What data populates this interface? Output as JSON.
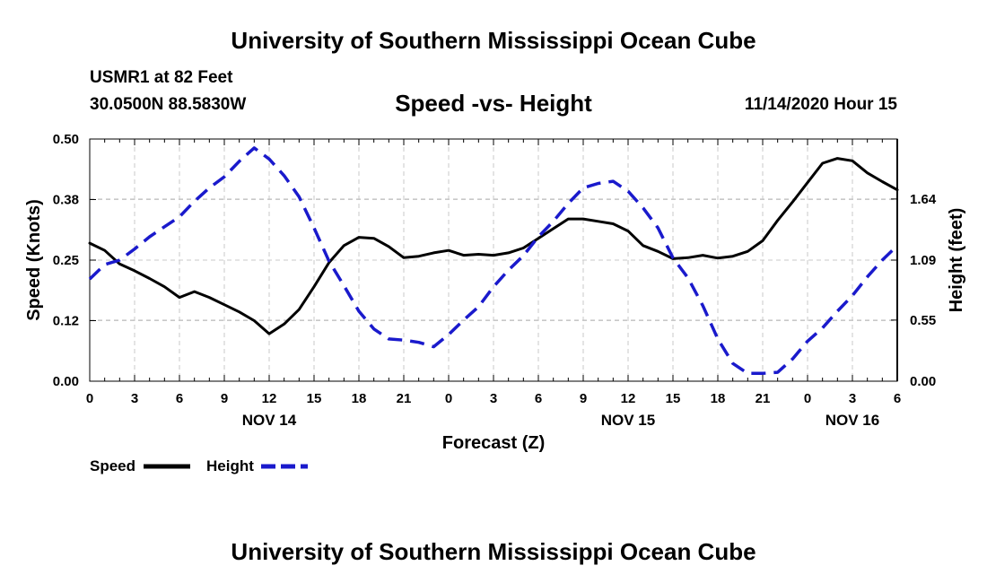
{
  "header": {
    "title": "University of Southern Mississippi Ocean Cube",
    "station": "USMR1 at 82 Feet",
    "coords": "30.0500N 88.5830W",
    "subtitle": "Speed -vs- Height",
    "datetime": "11/14/2020 Hour 15"
  },
  "footer": {
    "title": "University of Southern Mississippi Ocean Cube"
  },
  "legend": {
    "speed_label": "Speed",
    "height_label": "Height"
  },
  "colors": {
    "speed": "#000000",
    "height": "#1a1acc",
    "grid": "#c8c8c8"
  },
  "chart_data": {
    "type": "line",
    "title": "Speed -vs- Height",
    "xlabel": "Forecast (Z)",
    "ylabel": "Speed (Knots)",
    "y2label": "Height (feet)",
    "x_unit": "hours since NOV 14 00Z",
    "xlim": [
      0,
      54
    ],
    "ylim": [
      0,
      0.5
    ],
    "y2lim": [
      0,
      2.18
    ],
    "x_ticks": [
      0,
      3,
      6,
      9,
      12,
      15,
      18,
      21,
      24,
      27,
      30,
      33,
      36,
      39,
      42,
      45,
      48,
      51,
      54
    ],
    "x_tick_labels": [
      "0",
      "3",
      "6",
      "9",
      "12",
      "15",
      "18",
      "21",
      "0",
      "3",
      "6",
      "9",
      "12",
      "15",
      "18",
      "21",
      "0",
      "3",
      "6"
    ],
    "date_labels": [
      {
        "x": 12,
        "label": "NOV 14"
      },
      {
        "x": 36,
        "label": "NOV 15"
      },
      {
        "x": 51,
        "label": "NOV 16"
      }
    ],
    "y_ticks": [
      0.0,
      0.125,
      0.25,
      0.375,
      0.5
    ],
    "y_tick_labels": [
      "0.00",
      "0.12",
      "0.25",
      "0.38",
      "0.50"
    ],
    "y2_ticks": [
      0.0,
      0.55,
      1.09,
      1.64
    ],
    "y2_tick_labels": [
      "0.00",
      "0.55",
      "1.09",
      "1.64"
    ],
    "grid": true,
    "legend_position": "bottom-left",
    "series": [
      {
        "name": "Speed",
        "axis": "left",
        "style": "solid",
        "x": [
          0,
          1,
          2,
          3,
          4,
          5,
          6,
          7,
          8,
          9,
          10,
          11,
          12,
          13,
          14,
          15,
          16,
          17,
          18,
          19,
          20,
          21,
          22,
          23,
          24,
          25,
          26,
          27,
          28,
          29,
          30,
          31,
          32,
          33,
          34,
          35,
          36,
          37,
          38,
          39,
          40,
          41,
          42,
          43,
          44,
          45,
          46,
          47,
          48,
          49,
          50,
          51,
          52,
          53,
          54
        ],
        "values": [
          0.285,
          0.27,
          0.242,
          0.228,
          0.212,
          0.195,
          0.173,
          0.185,
          0.173,
          0.158,
          0.143,
          0.125,
          0.098,
          0.118,
          0.148,
          0.195,
          0.245,
          0.28,
          0.297,
          0.295,
          0.278,
          0.255,
          0.258,
          0.265,
          0.27,
          0.26,
          0.262,
          0.26,
          0.265,
          0.275,
          0.295,
          0.315,
          0.335,
          0.335,
          0.33,
          0.325,
          0.31,
          0.28,
          0.268,
          0.253,
          0.255,
          0.26,
          0.254,
          0.258,
          0.268,
          0.29,
          0.332,
          0.37,
          0.41,
          0.45,
          0.46,
          0.455,
          0.43,
          0.412,
          0.395
        ]
      },
      {
        "name": "Height",
        "axis": "right",
        "style": "dashed",
        "x": [
          0,
          1,
          2,
          3,
          4,
          5,
          6,
          7,
          8,
          9,
          10,
          11,
          12,
          13,
          14,
          15,
          16,
          17,
          18,
          19,
          20,
          21,
          22,
          23,
          24,
          25,
          26,
          27,
          28,
          29,
          30,
          31,
          32,
          33,
          34,
          35,
          36,
          37,
          38,
          39,
          40,
          41,
          42,
          43,
          44,
          45,
          46,
          47,
          48,
          49,
          50,
          51,
          52,
          53,
          54
        ],
        "values": [
          0.92,
          1.05,
          1.09,
          1.19,
          1.3,
          1.39,
          1.48,
          1.62,
          1.74,
          1.84,
          1.98,
          2.1,
          2.0,
          1.85,
          1.66,
          1.38,
          1.08,
          0.86,
          0.63,
          0.47,
          0.38,
          0.37,
          0.35,
          0.31,
          0.42,
          0.55,
          0.67,
          0.85,
          1.0,
          1.13,
          1.3,
          1.44,
          1.6,
          1.74,
          1.78,
          1.8,
          1.71,
          1.56,
          1.38,
          1.11,
          0.93,
          0.68,
          0.38,
          0.16,
          0.07,
          0.07,
          0.08,
          0.2,
          0.36,
          0.48,
          0.63,
          0.77,
          0.94,
          1.09,
          1.22
        ]
      }
    ]
  }
}
